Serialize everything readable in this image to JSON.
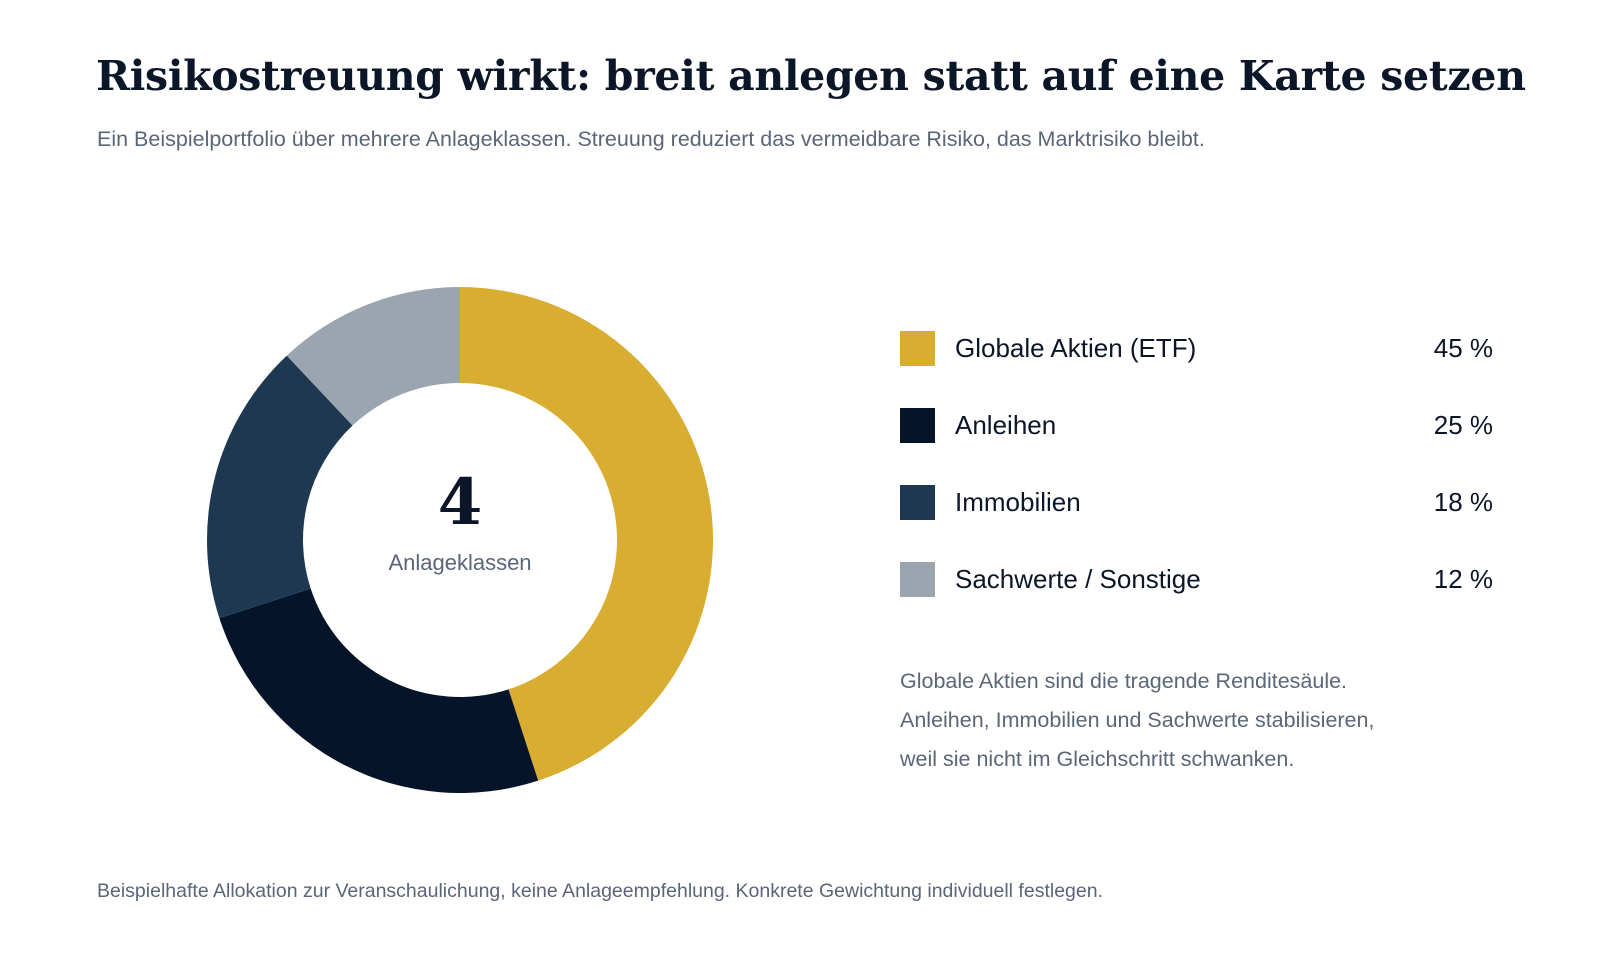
{
  "title": "Risikostreuung wirkt: breit anlegen statt auf eine Karte setzen",
  "subtitle": "Ein Beispielportfolio über mehrere Anlageklassen. Streuung reduziert das vermeidbare Risiko, das Marktrisiko bleibt.",
  "center": {
    "number": "4",
    "label": "Anlageklassen"
  },
  "chart_data": {
    "type": "pie",
    "style": "donut",
    "categories": [
      "Globale Aktien (ETF)",
      "Anleihen",
      "Immobilien",
      "Sachwerte / Sonstige"
    ],
    "values": [
      45,
      25,
      18,
      12
    ],
    "value_labels": [
      "45 %",
      "25 %",
      "18 %",
      "12 %"
    ],
    "colors": [
      "#d8ad31",
      "#06142a",
      "#1e3852",
      "#9aa5af"
    ],
    "legend_position": "right"
  },
  "note_lines": [
    "Globale Aktien sind die tragende Renditesäule.",
    "Anleihen, Immobilien und Sachwerte stabilisieren,",
    "weil sie nicht im Gleichschritt schwanken."
  ],
  "footnote": "Beispielhafte Allokation zur Veranschaulichung, keine Anlageempfehlung. Konkrete Gewichtung individuell festlegen."
}
